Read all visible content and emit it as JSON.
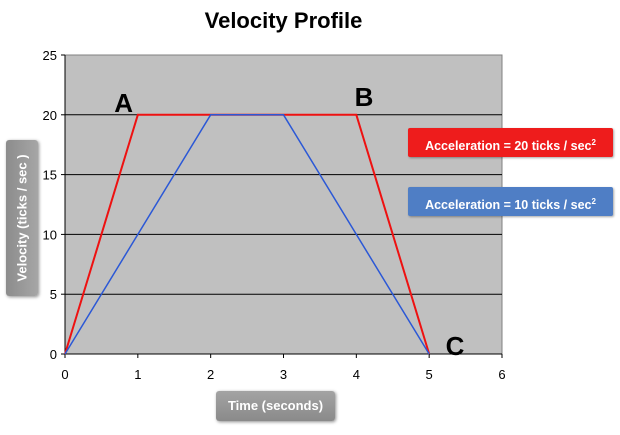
{
  "chart_data": {
    "type": "line",
    "title": "Velocity Profile",
    "xlabel": "Time (seconds)",
    "ylabel": "Velocity (ticks / sec )",
    "xlim": [
      0,
      6
    ],
    "ylim": [
      0,
      25
    ],
    "x_ticks": [
      "0",
      "1",
      "2",
      "3",
      "4",
      "5",
      "6"
    ],
    "y_ticks": [
      "0",
      "5",
      "10",
      "15",
      "20",
      "25"
    ],
    "grid": true,
    "series": [
      {
        "name": "Acceleration = 20 ticks / sec",
        "color": "#ee1111",
        "x": [
          0,
          1,
          4,
          5
        ],
        "y": [
          0,
          20,
          20,
          0
        ]
      },
      {
        "name": "Acceleration = 10 ticks / sec",
        "color": "#2b58d6",
        "x": [
          0,
          2,
          3,
          5
        ],
        "y": [
          0,
          20,
          20,
          0
        ]
      }
    ],
    "legend": [
      {
        "text": "Acceleration = 20 ticks / sec",
        "superscript": "2",
        "color": "#ee1c1c"
      },
      {
        "text": "Acceleration = 10 ticks / sec",
        "superscript": "2",
        "color": "#4f7ec5"
      }
    ],
    "annotations": [
      {
        "text": "A",
        "x": 0.8,
        "y": 21
      },
      {
        "text": "B",
        "x": 4.1,
        "y": 21.5
      },
      {
        "text": "C",
        "x": 5.35,
        "y": 0.7
      }
    ]
  }
}
